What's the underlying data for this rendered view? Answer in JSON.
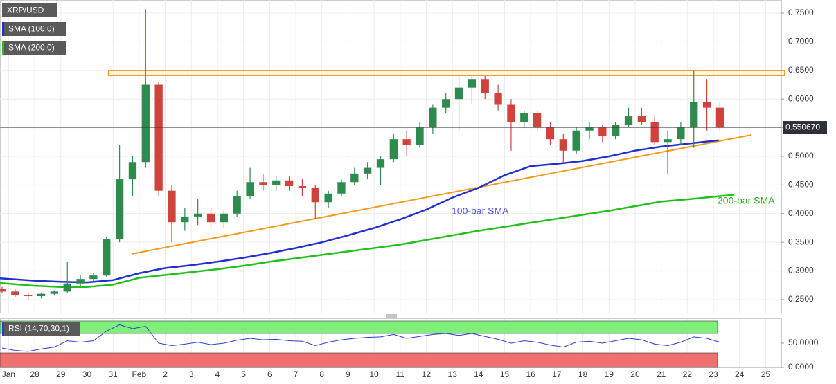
{
  "chart_data": {
    "type": "candlestick",
    "title": "XRP/USD",
    "up_color": "#2e8b4e",
    "down_color": "#d0433c",
    "xlim": [
      -1.33,
      28.6
    ],
    "xticks": [
      {
        "value": -1,
        "label": "Jan"
      },
      {
        "value": 0,
        "label": "28"
      },
      {
        "value": 1,
        "label": "29"
      },
      {
        "value": 2,
        "label": "30"
      },
      {
        "value": 3,
        "label": "31"
      },
      {
        "value": 4,
        "label": "Feb"
      },
      {
        "value": 5,
        "label": "2"
      },
      {
        "value": 6,
        "label": "3"
      },
      {
        "value": 7,
        "label": "4"
      },
      {
        "value": 8,
        "label": "5"
      },
      {
        "value": 9,
        "label": "6"
      },
      {
        "value": 10,
        "label": "7"
      },
      {
        "value": 11,
        "label": "8"
      },
      {
        "value": 12,
        "label": "9"
      },
      {
        "value": 13,
        "label": "10"
      },
      {
        "value": 14,
        "label": "11"
      },
      {
        "value": 15,
        "label": "12"
      },
      {
        "value": 16,
        "label": "13"
      },
      {
        "value": 17,
        "label": "14"
      },
      {
        "value": 18,
        "label": "15"
      },
      {
        "value": 19,
        "label": "16"
      },
      {
        "value": 20,
        "label": "17"
      },
      {
        "value": 21,
        "label": "18"
      },
      {
        "value": 22,
        "label": "19"
      },
      {
        "value": 23,
        "label": "20"
      },
      {
        "value": 24,
        "label": "21"
      },
      {
        "value": 25,
        "label": "22"
      },
      {
        "value": 26,
        "label": "23"
      },
      {
        "value": 27,
        "label": "24"
      },
      {
        "value": 28,
        "label": "25"
      }
    ],
    "ylim": [
      0.227,
      0.773
    ],
    "yticks": [
      {
        "value": 0.25,
        "label": "0.2500"
      },
      {
        "value": 0.3,
        "label": "0.3000"
      },
      {
        "value": 0.35,
        "label": "0.3500"
      },
      {
        "value": 0.4,
        "label": "0.4000"
      },
      {
        "value": 0.45,
        "label": "0.4500"
      },
      {
        "value": 0.5,
        "label": "0.5000"
      },
      {
        "value": 0.55,
        "label": "0.5500"
      },
      {
        "value": 0.6,
        "label": "0.6000"
      },
      {
        "value": 0.65,
        "label": "0.6500"
      },
      {
        "value": 0.7,
        "label": "0.7000"
      },
      {
        "value": 0.75,
        "label": "0.7500"
      }
    ],
    "x": [
      -1.5,
      -1,
      -0.5,
      0,
      0.5,
      1,
      1.5,
      2,
      2.5,
      3,
      3.5,
      4,
      4.5,
      5,
      5.5,
      6,
      6.5,
      7,
      7.5,
      8,
      8.5,
      9,
      9.5,
      10,
      10.5,
      11,
      11.5,
      12,
      12.5,
      13,
      13.5,
      14,
      14.5,
      15,
      15.5,
      16,
      16.5,
      17,
      17.5,
      18,
      18.5,
      19,
      19.5,
      20,
      20.5,
      21,
      21.5,
      22,
      22.5,
      23,
      23.5,
      24,
      24.5,
      25,
      25.5,
      26
    ],
    "open": [
      0.268,
      0.264,
      0.258,
      0.256,
      0.26,
      0.264,
      0.278,
      0.286,
      0.292,
      0.355,
      0.46,
      0.49,
      0.625,
      0.44,
      0.385,
      0.395,
      0.4,
      0.385,
      0.4,
      0.43,
      0.455,
      0.45,
      0.458,
      0.448,
      0.445,
      0.42,
      0.435,
      0.455,
      0.47,
      0.48,
      0.495,
      0.53,
      0.52,
      0.55,
      0.585,
      0.6,
      0.62,
      0.635,
      0.61,
      0.59,
      0.56,
      0.575,
      0.55,
      0.53,
      0.51,
      0.545,
      0.55,
      0.535,
      0.555,
      0.57,
      0.56,
      0.525,
      0.53,
      0.55,
      0.595,
      0.585
    ],
    "high": [
      0.272,
      0.268,
      0.262,
      0.262,
      0.266,
      0.316,
      0.292,
      0.296,
      0.36,
      0.52,
      0.5,
      0.757,
      0.63,
      0.45,
      0.41,
      0.425,
      0.41,
      0.405,
      0.44,
      0.48,
      0.47,
      0.465,
      0.465,
      0.46,
      0.45,
      0.44,
      0.46,
      0.48,
      0.49,
      0.5,
      0.54,
      0.545,
      0.56,
      0.59,
      0.61,
      0.64,
      0.64,
      0.64,
      0.625,
      0.6,
      0.58,
      0.58,
      0.56,
      0.54,
      0.55,
      0.56,
      0.555,
      0.56,
      0.585,
      0.585,
      0.57,
      0.545,
      0.56,
      0.65,
      0.635,
      0.595
    ],
    "low": [
      0.262,
      0.255,
      0.25,
      0.252,
      0.257,
      0.262,
      0.274,
      0.282,
      0.29,
      0.35,
      0.43,
      0.48,
      0.43,
      0.35,
      0.37,
      0.38,
      0.375,
      0.375,
      0.395,
      0.425,
      0.44,
      0.44,
      0.44,
      0.43,
      0.39,
      0.41,
      0.43,
      0.45,
      0.46,
      0.45,
      0.49,
      0.5,
      0.515,
      0.54,
      0.575,
      0.545,
      0.59,
      0.6,
      0.58,
      0.51,
      0.55,
      0.545,
      0.52,
      0.49,
      0.505,
      0.53,
      0.525,
      0.53,
      0.55,
      0.555,
      0.52,
      0.47,
      0.52,
      0.515,
      0.545,
      0.545
    ],
    "close": [
      0.264,
      0.258,
      0.256,
      0.26,
      0.264,
      0.278,
      0.286,
      0.292,
      0.355,
      0.46,
      0.49,
      0.625,
      0.44,
      0.385,
      0.395,
      0.4,
      0.385,
      0.4,
      0.43,
      0.455,
      0.45,
      0.458,
      0.448,
      0.445,
      0.42,
      0.435,
      0.455,
      0.47,
      0.48,
      0.495,
      0.53,
      0.52,
      0.55,
      0.585,
      0.6,
      0.62,
      0.635,
      0.61,
      0.59,
      0.56,
      0.575,
      0.55,
      0.53,
      0.51,
      0.545,
      0.55,
      0.535,
      0.555,
      0.57,
      0.56,
      0.525,
      0.53,
      0.55,
      0.595,
      0.585,
      0.55
    ],
    "last_price": {
      "value": 0.55067,
      "label": "0.550670"
    },
    "overlays": [
      {
        "name": "SMA (100,0)",
        "label": "100-bar SMA",
        "color": "#1f2fd0",
        "x": [
          -1.33,
          0,
          1,
          2,
          3,
          4,
          5,
          6,
          7,
          8,
          9,
          10,
          11,
          12,
          13,
          14,
          15,
          16,
          17,
          18,
          19,
          20,
          21,
          22,
          23,
          24,
          25,
          26.2
        ],
        "values": [
          0.287,
          0.283,
          0.281,
          0.28,
          0.284,
          0.296,
          0.305,
          0.31,
          0.316,
          0.323,
          0.331,
          0.34,
          0.35,
          0.362,
          0.375,
          0.39,
          0.407,
          0.428,
          0.445,
          0.467,
          0.483,
          0.487,
          0.492,
          0.5,
          0.51,
          0.517,
          0.522,
          0.528
        ]
      },
      {
        "name": "SMA (200,0)",
        "label": "200-bar SMA",
        "color": "#22c01a",
        "x": [
          -1.33,
          0,
          1,
          2,
          3,
          4,
          5,
          6,
          7,
          8,
          9,
          10,
          11,
          12,
          13,
          14,
          15,
          16,
          17,
          18,
          19,
          20,
          21,
          22,
          23,
          24,
          25,
          26.8
        ],
        "values": [
          0.279,
          0.274,
          0.272,
          0.272,
          0.276,
          0.288,
          0.293,
          0.298,
          0.303,
          0.309,
          0.316,
          0.322,
          0.328,
          0.334,
          0.34,
          0.346,
          0.354,
          0.362,
          0.37,
          0.377,
          0.384,
          0.391,
          0.398,
          0.405,
          0.413,
          0.421,
          0.425,
          0.433
        ]
      }
    ],
    "rsi": {
      "name": "RSI (14,70,30,1)",
      "color": "#2a3fd0",
      "values": [
        40,
        35,
        33,
        38,
        42,
        55,
        52,
        55,
        75,
        88,
        80,
        85,
        50,
        45,
        48,
        52,
        47,
        50,
        56,
        60,
        57,
        58,
        55,
        54,
        45,
        52,
        57,
        60,
        62,
        63,
        68,
        60,
        64,
        68,
        70,
        66,
        70,
        64,
        58,
        50,
        55,
        52,
        46,
        42,
        52,
        54,
        50,
        55,
        60,
        57,
        48,
        45,
        52,
        63,
        60,
        52
      ],
      "ylim": [
        0,
        100
      ],
      "yticks": [
        {
          "value": 0,
          "label": "0.0000"
        },
        {
          "value": 50,
          "label": "50.0000"
        }
      ],
      "overbought": 70,
      "oversold": 30,
      "overbought_color": "#7ef07a",
      "oversold_color": "#f07070"
    }
  }
}
